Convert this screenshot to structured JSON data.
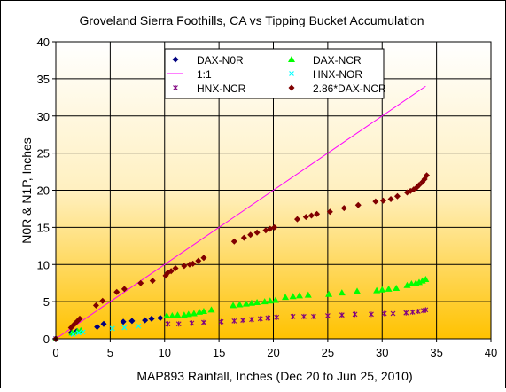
{
  "chart_data": {
    "type": "scatter",
    "title": "Groveland Sierra Foothills, CA  vs Tipping Bucket Accumulation",
    "xlabel": "MAP893 Rainfall, Inches (Dec 20 to Jun 25, 2010)",
    "ylabel": "N0R & N1P, Inches",
    "xlim": [
      0,
      40
    ],
    "ylim": [
      0,
      40
    ],
    "xticks": [
      "0",
      "5",
      "10",
      "15",
      "20",
      "25",
      "30",
      "35",
      "40"
    ],
    "yticks": [
      "0",
      "5",
      "10",
      "15",
      "20",
      "25",
      "30",
      "35",
      "40"
    ],
    "grid": true,
    "legend_position": "top-center",
    "plot_background": "gradient white to #ffc200 (top to bottom)",
    "series": [
      {
        "name": "DAX-N0R",
        "color": "#000080",
        "marker": "diamond",
        "x": [
          0,
          1.4,
          1.9,
          3.8,
          4.4,
          6.2,
          7.0,
          8.2,
          8.8,
          9.6
        ],
        "y": [
          0,
          0.8,
          1.0,
          1.6,
          2.0,
          2.3,
          2.4,
          2.5,
          2.7,
          2.8
        ]
      },
      {
        "name": "DAX-NCR",
        "color": "#00ff00",
        "marker": "triangle",
        "x": [
          0,
          1.5,
          2.0,
          2.3,
          10.2,
          10.7,
          11.2,
          11.8,
          12.2,
          12.7,
          13.2,
          13.6,
          14.3,
          16.3,
          16.9,
          17.5,
          18.0,
          18.5,
          19.2,
          19.7,
          20.2,
          21.1,
          21.8,
          22.4,
          23.2,
          25.1,
          26.3,
          27.7,
          29.5,
          30.0,
          30.6,
          31.3,
          32.3,
          32.7,
          33.1,
          33.4,
          33.7,
          34.0
        ],
        "y": [
          0,
          0.8,
          1.0,
          1.1,
          3.1,
          3.1,
          3.2,
          3.2,
          3.3,
          3.4,
          3.6,
          3.7,
          3.9,
          4.5,
          4.6,
          4.7,
          4.8,
          4.9,
          5.0,
          5.1,
          5.2,
          5.6,
          5.7,
          5.8,
          5.9,
          6.0,
          6.2,
          6.4,
          6.5,
          6.6,
          6.7,
          6.8,
          7.2,
          7.4,
          7.5,
          7.6,
          7.8,
          8.0
        ]
      },
      {
        "name": "1:1",
        "color": "#ff00ff",
        "marker": "line",
        "x": [
          0,
          34
        ],
        "y": [
          0,
          34
        ]
      },
      {
        "name": "HNX-NOR",
        "color": "#00ffff",
        "marker": "x",
        "x": [
          0,
          1.6,
          2.1,
          2.5,
          5.2,
          6.3,
          7.6
        ],
        "y": [
          0,
          0.6,
          0.8,
          0.9,
          1.4,
          1.5,
          1.7
        ]
      },
      {
        "name": "HNX-NCR",
        "color": "#800080",
        "marker": "asterisk",
        "x": [
          0,
          10.3,
          11.3,
          12.5,
          13.6,
          15.2,
          16.4,
          17.2,
          18.0,
          18.8,
          19.5,
          20.3,
          21.8,
          22.8,
          23.7,
          25.0,
          26.3,
          27.5,
          29.0,
          30.2,
          31.0,
          32.2,
          32.8,
          33.3,
          33.8,
          34.0
        ],
        "y": [
          0,
          2.0,
          2.0,
          2.1,
          2.2,
          2.3,
          2.4,
          2.5,
          2.6,
          2.7,
          2.8,
          2.9,
          3.0,
          3.0,
          3.0,
          3.1,
          3.2,
          3.3,
          3.3,
          3.4,
          3.4,
          3.5,
          3.6,
          3.7,
          3.8,
          3.9
        ]
      },
      {
        "name": "2.86*DAX-NCR",
        "color": "#800000",
        "marker": "diamond",
        "x": [
          0,
          1.4,
          1.6,
          1.8,
          2.0,
          2.2,
          3.7,
          4.3,
          5.6,
          6.3,
          7.8,
          8.9,
          10.1,
          10.3,
          10.6,
          11.0,
          11.8,
          12.3,
          12.6,
          13.1,
          13.6,
          16.4,
          17.3,
          17.9,
          18.5,
          19.3,
          19.7,
          20.1,
          22.2,
          23.0,
          23.5,
          24.0,
          25.2,
          26.5,
          27.8,
          29.4,
          30.1,
          30.8,
          31.4,
          32.3,
          32.6,
          32.9,
          33.2,
          33.4,
          33.7,
          33.9,
          34.1
        ],
        "y": [
          0,
          1.5,
          1.8,
          2.1,
          2.4,
          2.7,
          4.5,
          5.1,
          6.3,
          6.7,
          7.5,
          7.8,
          8.5,
          8.9,
          9.1,
          9.5,
          9.8,
          10.0,
          10.1,
          10.5,
          10.9,
          13.1,
          13.6,
          14.0,
          14.3,
          14.6,
          14.8,
          15.0,
          16.1,
          16.4,
          16.6,
          16.8,
          17.1,
          17.6,
          18.0,
          18.5,
          18.6,
          18.8,
          19.2,
          19.7,
          19.9,
          20.1,
          20.4,
          20.7,
          21.1,
          21.5,
          22.0
        ]
      }
    ]
  }
}
